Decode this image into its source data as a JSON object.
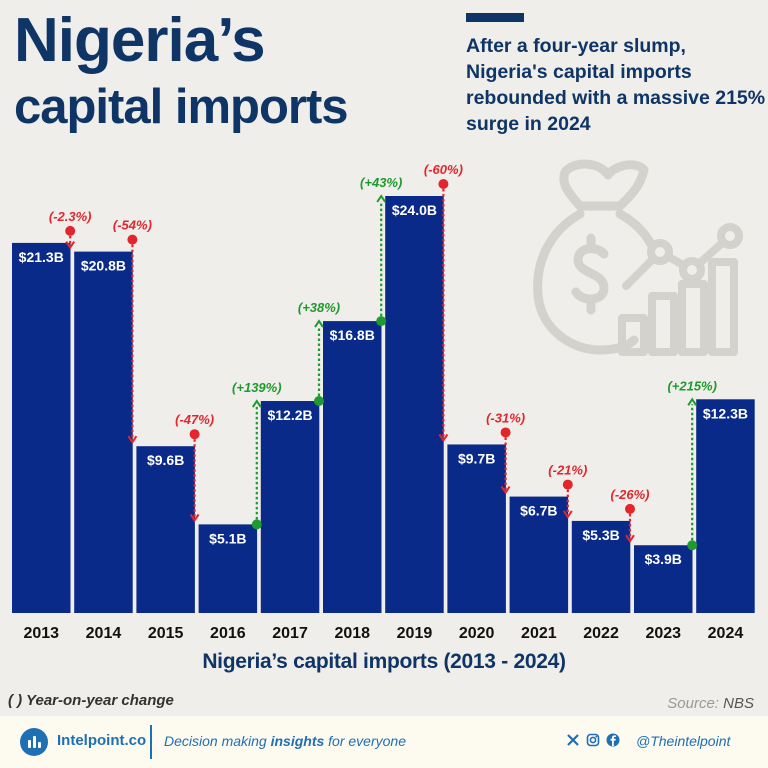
{
  "header": {
    "title_line1": "Nigeria’s",
    "title_line2": "capital imports",
    "subtitle": "After a four-year slump, Nigeria's capital imports rebounded with a massive 215% surge in 2024"
  },
  "chart_data": {
    "type": "bar",
    "categories": [
      "2013",
      "2014",
      "2015",
      "2016",
      "2017",
      "2018",
      "2019",
      "2020",
      "2021",
      "2022",
      "2023",
      "2024"
    ],
    "values": [
      21.3,
      20.8,
      9.6,
      5.1,
      12.2,
      16.8,
      24.0,
      9.7,
      6.7,
      5.3,
      3.9,
      12.3
    ],
    "value_labels": [
      "$21.3B",
      "$20.8B",
      "$9.6B",
      "$5.1B",
      "$12.2B",
      "$16.8B",
      "$24.0B",
      "$9.7B",
      "$6.7B",
      "$5.3B",
      "$3.9B",
      "$12.3B"
    ],
    "changes": [
      "",
      "(-2.3%)",
      "(-54%)",
      "(-47%)",
      "(+139%)",
      "(+38%)",
      "(+43%)",
      "(-60%)",
      "(-31%)",
      "(-21%)",
      "(-26%)",
      "(+215%)"
    ],
    "xlabel": "Nigeria’s capital imports (2013 - 2024)",
    "ylim": [
      0,
      24
    ],
    "colors": {
      "bar": "#0a2a8a",
      "increase": "#1f9a2e",
      "decrease": "#e3262d"
    }
  },
  "legend_note": "( ) Year-on-year change",
  "source": {
    "label": "Source:",
    "value": "NBS"
  },
  "footer": {
    "brand": "Intelpoint.co",
    "tagline_pre": "Decision making ",
    "tagline_bold": "insights",
    "tagline_post": " for everyone",
    "handle": "@Theintelpoint"
  },
  "icons": [
    "money-bag-icon",
    "bar-chart-icon",
    "x-icon",
    "instagram-icon",
    "facebook-icon",
    "intelpoint-logo-icon"
  ]
}
